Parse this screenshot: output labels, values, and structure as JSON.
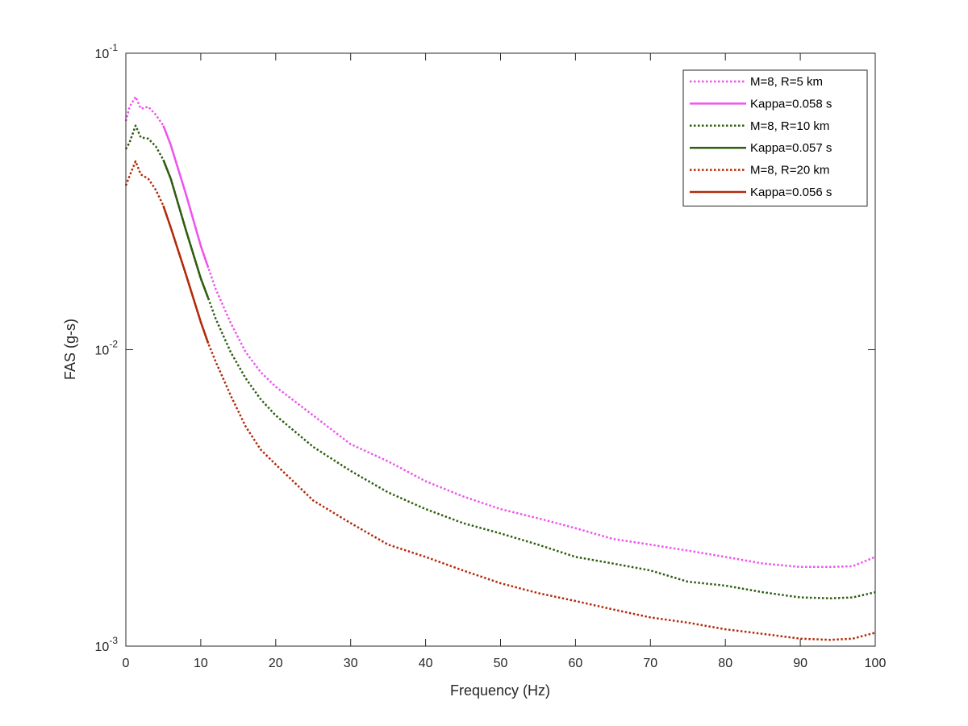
{
  "chart_data": {
    "type": "line",
    "x_label": "Frequency (Hz)",
    "y_label": "FAS (g-s)",
    "xlim": [
      0,
      100
    ],
    "xticks": [
      0,
      10,
      20,
      30,
      40,
      50,
      60,
      70,
      80,
      90,
      100
    ],
    "ylim": [
      0.001,
      0.1
    ],
    "yticks": [
      {
        "value": 0.1,
        "label": "10^-1"
      },
      {
        "value": 0.01,
        "label": "10^-2"
      },
      {
        "value": 0.001,
        "label": "10^-3"
      }
    ],
    "y_scale": "log",
    "grid": false,
    "legend_position": "top-right",
    "series": [
      {
        "name": "M=8, R=5 km",
        "color": "#ee55ee",
        "style": "dotted",
        "x": [
          0,
          0.5,
          1.3,
          2,
          3,
          4,
          5,
          6,
          8,
          10,
          11,
          12,
          14,
          16,
          18,
          20,
          25,
          30,
          35,
          40,
          45,
          50,
          55,
          60,
          65,
          70,
          75,
          80,
          85,
          90,
          94,
          97,
          100
        ],
        "values": [
          0.059,
          0.066,
          0.0713,
          0.065,
          0.066,
          0.062,
          0.057,
          0.049,
          0.0336,
          0.0224,
          0.0189,
          0.016,
          0.0123,
          0.0098,
          0.0084,
          0.0075,
          0.006,
          0.0048,
          0.0042,
          0.0036,
          0.0032,
          0.0029,
          0.0027,
          0.0025,
          0.0023,
          0.0022,
          0.0021,
          0.002,
          0.0019,
          0.00185,
          0.00185,
          0.00186,
          0.002
        ]
      },
      {
        "name": "Kappa=0.058 s",
        "color": "#ee55ee",
        "style": "solid",
        "x": [
          5,
          6,
          8,
          10,
          11
        ],
        "values": [
          0.057,
          0.049,
          0.0336,
          0.0224,
          0.0189
        ]
      },
      {
        "name": "M=8, R=10 km",
        "color": "#2e5e0e",
        "style": "dotted",
        "x": [
          0,
          0.5,
          1.3,
          2,
          3,
          4,
          5,
          6,
          8,
          10,
          11,
          12,
          14,
          16,
          18,
          20,
          25,
          30,
          35,
          40,
          45,
          50,
          55,
          60,
          65,
          70,
          75,
          80,
          85,
          90,
          94,
          97,
          100
        ],
        "values": [
          0.0475,
          0.05,
          0.057,
          0.052,
          0.0515,
          0.0485,
          0.0437,
          0.0377,
          0.0254,
          0.0174,
          0.0149,
          0.0127,
          0.0098,
          0.008,
          0.0068,
          0.006,
          0.0047,
          0.0039,
          0.0033,
          0.0029,
          0.0026,
          0.0024,
          0.0022,
          0.002,
          0.0019,
          0.0018,
          0.00165,
          0.0016,
          0.00152,
          0.00146,
          0.00145,
          0.00146,
          0.00152
        ]
      },
      {
        "name": "Kappa=0.057 s",
        "color": "#2e5e0e",
        "style": "solid",
        "x": [
          5,
          6,
          8,
          10,
          11
        ],
        "values": [
          0.0437,
          0.0377,
          0.0254,
          0.0174,
          0.0149
        ]
      },
      {
        "name": "M=8, R=20 km",
        "color": "#b22a0a",
        "style": "dotted",
        "x": [
          0,
          0.5,
          1.3,
          2,
          3,
          4,
          5,
          6,
          8,
          10,
          11,
          12,
          14,
          16,
          18,
          20,
          25,
          30,
          35,
          40,
          45,
          50,
          55,
          60,
          65,
          70,
          75,
          80,
          85,
          90,
          94,
          97,
          100
        ],
        "values": [
          0.0358,
          0.0386,
          0.0432,
          0.039,
          0.0377,
          0.0346,
          0.0306,
          0.0258,
          0.018,
          0.0124,
          0.0105,
          0.0091,
          0.007,
          0.0055,
          0.0046,
          0.0041,
          0.0031,
          0.0026,
          0.0022,
          0.002,
          0.0018,
          0.00163,
          0.00151,
          0.00142,
          0.00133,
          0.00125,
          0.0012,
          0.00114,
          0.0011,
          0.00106,
          0.00105,
          0.00106,
          0.00111
        ]
      },
      {
        "name": "Kappa=0.056 s",
        "color": "#b22a0a",
        "style": "solid",
        "x": [
          5,
          6,
          8,
          10,
          11
        ],
        "values": [
          0.0306,
          0.0258,
          0.018,
          0.0124,
          0.0105
        ]
      }
    ]
  }
}
